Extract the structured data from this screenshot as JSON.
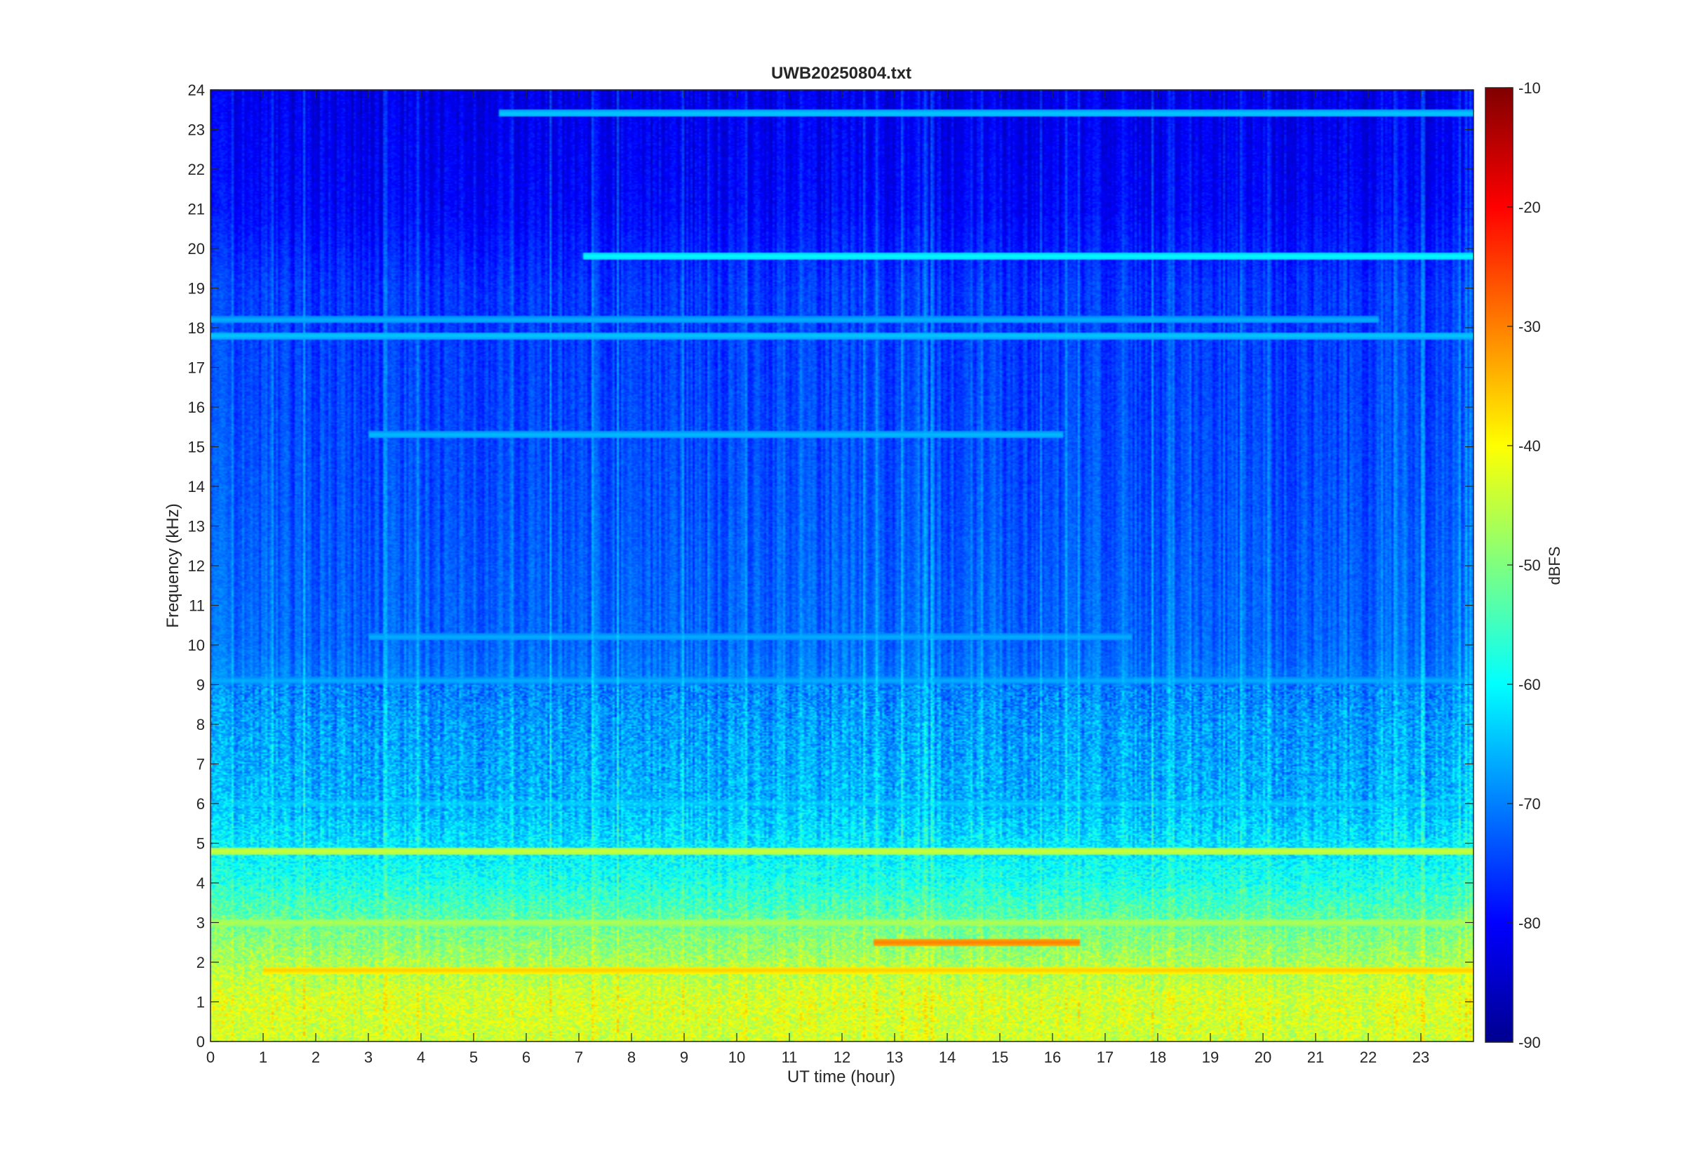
{
  "chart_data": {
    "type": "heatmap",
    "title": "UWB20250804.txt",
    "xlabel": "UT time (hour)",
    "ylabel": "Frequency (kHz)",
    "xlim": [
      0,
      24
    ],
    "ylim": [
      0,
      24
    ],
    "x_ticks": [
      "0",
      "1",
      "2",
      "3",
      "4",
      "5",
      "6",
      "7",
      "8",
      "9",
      "10",
      "11",
      "12",
      "13",
      "14",
      "15",
      "16",
      "17",
      "18",
      "19",
      "20",
      "21",
      "22",
      "23"
    ],
    "y_ticks": [
      "0",
      "1",
      "2",
      "3",
      "4",
      "5",
      "6",
      "7",
      "8",
      "9",
      "10",
      "11",
      "12",
      "13",
      "14",
      "15",
      "16",
      "17",
      "18",
      "19",
      "20",
      "21",
      "22",
      "23",
      "24"
    ],
    "colorbar": {
      "label": "dBFS",
      "colormap": "jet",
      "range": [
        -90,
        -10
      ],
      "ticks": [
        "-90",
        "-80",
        "-70",
        "-60",
        "-50",
        "-40",
        "-30",
        "-20",
        "-10"
      ]
    },
    "background_level_profile": [
      {
        "freq_khz": 0.0,
        "dbfs": -44
      },
      {
        "freq_khz": 1.0,
        "dbfs": -43
      },
      {
        "freq_khz": 2.0,
        "dbfs": -47
      },
      {
        "freq_khz": 3.0,
        "dbfs": -52
      },
      {
        "freq_khz": 4.0,
        "dbfs": -58
      },
      {
        "freq_khz": 5.0,
        "dbfs": -62
      },
      {
        "freq_khz": 6.0,
        "dbfs": -66
      },
      {
        "freq_khz": 7.0,
        "dbfs": -67
      },
      {
        "freq_khz": 8.0,
        "dbfs": -68
      },
      {
        "freq_khz": 9.0,
        "dbfs": -70
      },
      {
        "freq_khz": 10.0,
        "dbfs": -72
      },
      {
        "freq_khz": 14.0,
        "dbfs": -74
      },
      {
        "freq_khz": 19.0,
        "dbfs": -76
      },
      {
        "freq_khz": 21.0,
        "dbfs": -80
      },
      {
        "freq_khz": 24.0,
        "dbfs": -82
      }
    ],
    "narrowband_lines": [
      {
        "freq_khz": 19.8,
        "dbfs": -60,
        "from_hour": 7.1,
        "to_hour": 24
      },
      {
        "freq_khz": 18.2,
        "dbfs": -66,
        "from_hour": 0,
        "to_hour": 22.2
      },
      {
        "freq_khz": 17.8,
        "dbfs": -64,
        "from_hour": 0,
        "to_hour": 24
      },
      {
        "freq_khz": 23.4,
        "dbfs": -64,
        "from_hour": 5.5,
        "to_hour": 24
      },
      {
        "freq_khz": 15.3,
        "dbfs": -65,
        "from_hour": 3,
        "to_hour": 16.2
      },
      {
        "freq_khz": 10.2,
        "dbfs": -66,
        "from_hour": 3,
        "to_hour": 17.5
      },
      {
        "freq_khz": 9.1,
        "dbfs": -66,
        "from_hour": 0,
        "to_hour": 24
      },
      {
        "freq_khz": 6.0,
        "dbfs": -64,
        "from_hour": 0,
        "to_hour": 24
      },
      {
        "freq_khz": 4.8,
        "dbfs": -44,
        "from_hour": 0,
        "to_hour": 24
      },
      {
        "freq_khz": 3.0,
        "dbfs": -46,
        "from_hour": 0,
        "to_hour": 24
      },
      {
        "freq_khz": 2.5,
        "dbfs": -30,
        "from_hour": 12.6,
        "to_hour": 16.5
      },
      {
        "freq_khz": 1.8,
        "dbfs": -36,
        "from_hour": 1,
        "to_hour": 24
      }
    ]
  }
}
